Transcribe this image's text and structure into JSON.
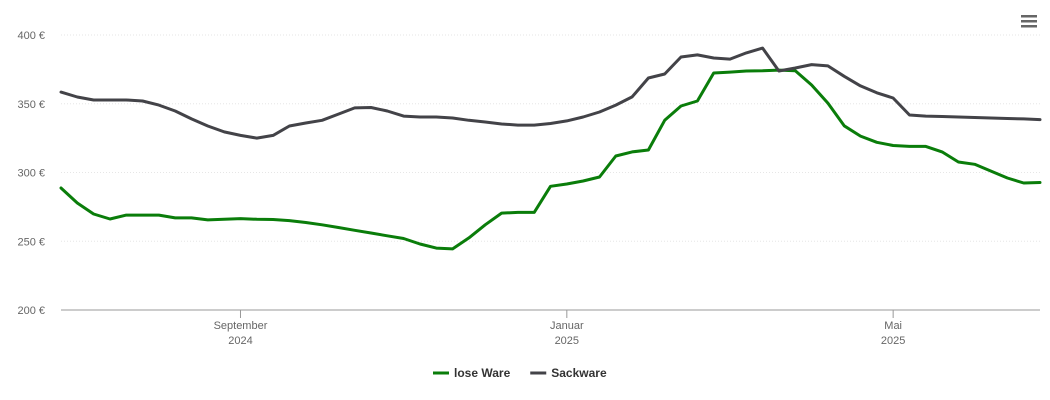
{
  "chart_data": {
    "type": "line",
    "categories": [
      null,
      null,
      null,
      null,
      null,
      null,
      null,
      null,
      null,
      null,
      null,
      "September 2024",
      null,
      null,
      null,
      null,
      null,
      null,
      null,
      null,
      null,
      null,
      null,
      null,
      null,
      null,
      null,
      null,
      null,
      null,
      null,
      "Januar 2025",
      null,
      null,
      null,
      null,
      null,
      null,
      null,
      null,
      null,
      null,
      null,
      null,
      null,
      null,
      null,
      null,
      null,
      null,
      null,
      "Mai 2025",
      null,
      null,
      null,
      null,
      null,
      null,
      null,
      null,
      null
    ],
    "series": [
      {
        "name": "lose Ware",
        "color": "#0a7d0a",
        "values": [
          288.7,
          277.8,
          269.8,
          266.2,
          269,
          269,
          269,
          267,
          267,
          265.5,
          266,
          266.5,
          266,
          265.8,
          265,
          263.6,
          262,
          260,
          258,
          256,
          254,
          252,
          248,
          245,
          244.4,
          252.4,
          262,
          270.5,
          271,
          271,
          290,
          291.6,
          293.8,
          296.7,
          312,
          315,
          316.4,
          338,
          348.4,
          352,
          372.4,
          373,
          373.8,
          374,
          374.5,
          374,
          363.6,
          350.5,
          334,
          326.5,
          322,
          319.6,
          319,
          319,
          315,
          307.6,
          306,
          301,
          296,
          292.4,
          292.7
        ]
      },
      {
        "name": "Sackware",
        "color": "#434348",
        "values": [
          358.5,
          354.9,
          352.7,
          352.7,
          352.7,
          352,
          349,
          344.7,
          339,
          333.8,
          329.5,
          327,
          325,
          327,
          333.8,
          336,
          338,
          342.5,
          347,
          347.3,
          344.7,
          341,
          340.4,
          340.4,
          339.6,
          338,
          336.7,
          335.3,
          334.5,
          334.5,
          335.6,
          337.5,
          340.4,
          344,
          349,
          355,
          368.7,
          371.6,
          384,
          385.5,
          383.3,
          382.5,
          387,
          390.5,
          373.8,
          376,
          378.5,
          377.5,
          370,
          363,
          358,
          354.2,
          341.8,
          341,
          340.7,
          340.4,
          340,
          339.6,
          339.3,
          339,
          338.5
        ]
      }
    ],
    "ylim": [
      200,
      400
    ],
    "yticks": [
      {
        "value": 200,
        "label": "200 €"
      },
      {
        "value": 250,
        "label": "250 €"
      },
      {
        "value": 300,
        "label": "300 €"
      },
      {
        "value": 350,
        "label": "350 €"
      },
      {
        "value": 400,
        "label": "400 €"
      }
    ],
    "grid": true,
    "legend": "bottom"
  }
}
